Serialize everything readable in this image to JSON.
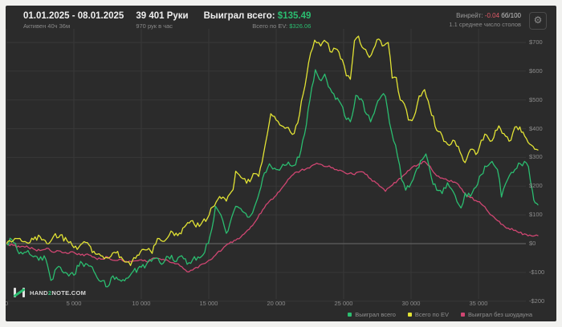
{
  "header": {
    "date_range": "01.01.2025 - 08.01.2025",
    "active_time": "Активен 40ч 36м",
    "hands": "39 401 Руки",
    "hands_per_hour": "970 рук в час",
    "won_label": "Выиграл всего:",
    "won_value": "$135.49",
    "ev_label": "Всего по EV:",
    "ev_value": "$326.06",
    "winrate_label": "Винрейт:",
    "winrate_value": "-0.04",
    "winrate_unit": "бб/100",
    "tables_avg": "1.1 среднее число столов",
    "gear_glyph": "⚙"
  },
  "footer": {
    "logo_part1": "HAND",
    "logo_part2": "2",
    "logo_part3": "NOTE.COM"
  },
  "legend": [
    {
      "label": "Выиграл всего",
      "color": "#2bbd70"
    },
    {
      "label": "Всего по EV",
      "color": "#e2e334"
    },
    {
      "label": "Выиграл без шоудауна",
      "color": "#d04672"
    }
  ],
  "colors": {
    "panel_bg": "#2b2b2b",
    "grid": "#383838",
    "zero_line": "#6b6b6b",
    "text_bright": "#efefef",
    "text_dim": "#8a8a8a",
    "green": "#2bbd70",
    "yellow": "#e2e334",
    "pink": "#d04672",
    "red": "#e05a68"
  },
  "chart_data": {
    "type": "line",
    "title": "",
    "xlabel": "",
    "ylabel": "",
    "x_range": [
      0,
      39401
    ],
    "y_range": [
      -200,
      730
    ],
    "grid": true,
    "legend_position": "bottom-right",
    "x_ticks": [
      {
        "value": 0,
        "label": "0"
      },
      {
        "value": 5000,
        "label": "5 000"
      },
      {
        "value": 10000,
        "label": "10 000"
      },
      {
        "value": 15000,
        "label": "15 000"
      },
      {
        "value": 20000,
        "label": "20 000"
      },
      {
        "value": 25000,
        "label": "25 000"
      },
      {
        "value": 30000,
        "label": "30 000"
      },
      {
        "value": 35000,
        "label": "35 000"
      }
    ],
    "y_ticks": [
      {
        "value": 700,
        "label": "$700"
      },
      {
        "value": 600,
        "label": "$600"
      },
      {
        "value": 500,
        "label": "$500"
      },
      {
        "value": 400,
        "label": "$400"
      },
      {
        "value": 300,
        "label": "$300"
      },
      {
        "value": 200,
        "label": "$200"
      },
      {
        "value": 100,
        "label": "$100"
      },
      {
        "value": 0,
        "label": "$0"
      },
      {
        "value": -100,
        "label": "-$100"
      },
      {
        "value": -200,
        "label": "-$200"
      }
    ],
    "series": [
      {
        "name": "Выиграл без шоудауна",
        "color": "#d04672",
        "noise": 5,
        "points": [
          [
            0,
            0
          ],
          [
            500,
            -6
          ],
          [
            1000,
            -12
          ],
          [
            1500,
            -8
          ],
          [
            2000,
            -18
          ],
          [
            2500,
            -24
          ],
          [
            3000,
            -16
          ],
          [
            3500,
            -30
          ],
          [
            4000,
            -26
          ],
          [
            4500,
            -34
          ],
          [
            5000,
            -30
          ],
          [
            5500,
            -40
          ],
          [
            6000,
            -36
          ],
          [
            6600,
            -50
          ],
          [
            7000,
            -54
          ],
          [
            7500,
            -46
          ],
          [
            8000,
            -58
          ],
          [
            8500,
            -54
          ],
          [
            9000,
            -64
          ],
          [
            9500,
            -60
          ],
          [
            10000,
            -56
          ],
          [
            10500,
            -64
          ],
          [
            11000,
            -50
          ],
          [
            11500,
            -56
          ],
          [
            12000,
            -60
          ],
          [
            12500,
            -70
          ],
          [
            13000,
            -80
          ],
          [
            13400,
            -98
          ],
          [
            13800,
            -92
          ],
          [
            14200,
            -84
          ],
          [
            14600,
            -70
          ],
          [
            15000,
            -58
          ],
          [
            15500,
            -40
          ],
          [
            16000,
            -20
          ],
          [
            16500,
            0
          ],
          [
            17000,
            12
          ],
          [
            17500,
            30
          ],
          [
            18000,
            50
          ],
          [
            18500,
            80
          ],
          [
            19000,
            118
          ],
          [
            19500,
            148
          ],
          [
            20000,
            168
          ],
          [
            20500,
            198
          ],
          [
            21000,
            228
          ],
          [
            21400,
            248
          ],
          [
            21800,
            254
          ],
          [
            22200,
            260
          ],
          [
            22600,
            270
          ],
          [
            23000,
            280
          ],
          [
            23400,
            274
          ],
          [
            23800,
            268
          ],
          [
            24200,
            264
          ],
          [
            24600,
            254
          ],
          [
            25000,
            250
          ],
          [
            25400,
            244
          ],
          [
            25800,
            240
          ],
          [
            26200,
            250
          ],
          [
            26600,
            242
          ],
          [
            27000,
            226
          ],
          [
            27400,
            212
          ],
          [
            27800,
            196
          ],
          [
            28100,
            182
          ],
          [
            28500,
            200
          ],
          [
            29000,
            220
          ],
          [
            29500,
            240
          ],
          [
            30000,
            262
          ],
          [
            30500,
            274
          ],
          [
            31000,
            286
          ],
          [
            31400,
            270
          ],
          [
            31900,
            236
          ],
          [
            32300,
            228
          ],
          [
            32700,
            220
          ],
          [
            33100,
            214
          ],
          [
            33500,
            206
          ],
          [
            34000,
            174
          ],
          [
            34400,
            160
          ],
          [
            34800,
            150
          ],
          [
            35200,
            138
          ],
          [
            35600,
            118
          ],
          [
            36000,
            98
          ],
          [
            36400,
            80
          ],
          [
            36800,
            66
          ],
          [
            37200,
            54
          ],
          [
            37600,
            46
          ],
          [
            38000,
            38
          ],
          [
            38400,
            34
          ],
          [
            38800,
            30
          ],
          [
            39401,
            28
          ]
        ]
      },
      {
        "name": "Выиграл всего",
        "color": "#2bbd70",
        "noise": 13,
        "points": [
          [
            0,
            0
          ],
          [
            400,
            14
          ],
          [
            800,
            -22
          ],
          [
            1200,
            -36
          ],
          [
            1600,
            -24
          ],
          [
            2000,
            -46
          ],
          [
            2400,
            -58
          ],
          [
            2800,
            -42
          ],
          [
            3300,
            -128
          ],
          [
            3600,
            -92
          ],
          [
            4000,
            -82
          ],
          [
            4500,
            -104
          ],
          [
            5000,
            -110
          ],
          [
            5500,
            -62
          ],
          [
            6000,
            -72
          ],
          [
            6600,
            -106
          ],
          [
            7000,
            -132
          ],
          [
            7500,
            -150
          ],
          [
            7900,
            -112
          ],
          [
            8400,
            -126
          ],
          [
            9000,
            -120
          ],
          [
            9400,
            -96
          ],
          [
            10000,
            -82
          ],
          [
            10500,
            -62
          ],
          [
            11000,
            -52
          ],
          [
            11500,
            -72
          ],
          [
            12000,
            -46
          ],
          [
            12600,
            -62
          ],
          [
            13000,
            -42
          ],
          [
            13400,
            -72
          ],
          [
            13800,
            -56
          ],
          [
            14200,
            -46
          ],
          [
            14700,
            -30
          ],
          [
            15100,
            28
          ],
          [
            15500,
            130
          ],
          [
            15900,
            100
          ],
          [
            16300,
            36
          ],
          [
            16700,
            92
          ],
          [
            17000,
            130
          ],
          [
            17500,
            112
          ],
          [
            18000,
            92
          ],
          [
            18500,
            142
          ],
          [
            19000,
            228
          ],
          [
            19500,
            278
          ],
          [
            20000,
            258
          ],
          [
            20500,
            276
          ],
          [
            20900,
            284
          ],
          [
            21300,
            272
          ],
          [
            21700,
            300
          ],
          [
            22100,
            380
          ],
          [
            22500,
            500
          ],
          [
            22900,
            605
          ],
          [
            23200,
            572
          ],
          [
            23600,
            590
          ],
          [
            24000,
            540
          ],
          [
            24400,
            502
          ],
          [
            24800,
            486
          ],
          [
            25200,
            432
          ],
          [
            25500,
            424
          ],
          [
            25900,
            516
          ],
          [
            26300,
            504
          ],
          [
            26700,
            450
          ],
          [
            27000,
            424
          ],
          [
            27400,
            478
          ],
          [
            27800,
            514
          ],
          [
            28100,
            512
          ],
          [
            28400,
            420
          ],
          [
            28700,
            358
          ],
          [
            29000,
            304
          ],
          [
            29300,
            222
          ],
          [
            29600,
            186
          ],
          [
            30000,
            210
          ],
          [
            30300,
            246
          ],
          [
            30700,
            288
          ],
          [
            31100,
            312
          ],
          [
            31500,
            230
          ],
          [
            31900,
            186
          ],
          [
            32300,
            174
          ],
          [
            32700,
            212
          ],
          [
            33000,
            190
          ],
          [
            33400,
            146
          ],
          [
            33700,
            124
          ],
          [
            34000,
            176
          ],
          [
            34400,
            164
          ],
          [
            34800,
            196
          ],
          [
            35200,
            240
          ],
          [
            35600,
            268
          ],
          [
            36000,
            286
          ],
          [
            36400,
            258
          ],
          [
            36700,
            162
          ],
          [
            37000,
            208
          ],
          [
            37300,
            238
          ],
          [
            37700,
            258
          ],
          [
            38100,
            278
          ],
          [
            38400,
            286
          ],
          [
            38700,
            268
          ],
          [
            39000,
            182
          ],
          [
            39200,
            142
          ],
          [
            39401,
            135
          ]
        ]
      },
      {
        "name": "Всего по EV",
        "color": "#e2e334",
        "noise": 12,
        "points": [
          [
            0,
            0
          ],
          [
            500,
            10
          ],
          [
            1000,
            18
          ],
          [
            1500,
            4
          ],
          [
            2000,
            14
          ],
          [
            2500,
            24
          ],
          [
            3000,
            0
          ],
          [
            3500,
            26
          ],
          [
            4000,
            30
          ],
          [
            4500,
            10
          ],
          [
            5000,
            -14
          ],
          [
            5500,
            -4
          ],
          [
            6000,
            4
          ],
          [
            6600,
            -36
          ],
          [
            7000,
            -42
          ],
          [
            7500,
            -50
          ],
          [
            8000,
            -30
          ],
          [
            8500,
            -46
          ],
          [
            9200,
            -76
          ],
          [
            9700,
            -40
          ],
          [
            10300,
            -22
          ],
          [
            10800,
            -34
          ],
          [
            11200,
            18
          ],
          [
            11700,
            8
          ],
          [
            12200,
            44
          ],
          [
            12700,
            28
          ],
          [
            13200,
            58
          ],
          [
            13800,
            80
          ],
          [
            14300,
            60
          ],
          [
            14900,
            88
          ],
          [
            15300,
            128
          ],
          [
            15800,
            164
          ],
          [
            16300,
            148
          ],
          [
            16800,
            188
          ],
          [
            17000,
            252
          ],
          [
            17400,
            230
          ],
          [
            17800,
            210
          ],
          [
            18300,
            244
          ],
          [
            18700,
            234
          ],
          [
            19200,
            348
          ],
          [
            19600,
            452
          ],
          [
            20000,
            430
          ],
          [
            20400,
            410
          ],
          [
            20900,
            404
          ],
          [
            21200,
            380
          ],
          [
            21600,
            420
          ],
          [
            22000,
            520
          ],
          [
            22400,
            630
          ],
          [
            22850,
            708
          ],
          [
            23300,
            688
          ],
          [
            23700,
            702
          ],
          [
            24000,
            668
          ],
          [
            24400,
            678
          ],
          [
            24900,
            640
          ],
          [
            25200,
            584
          ],
          [
            25500,
            572
          ],
          [
            25800,
            706
          ],
          [
            26100,
            722
          ],
          [
            26500,
            678
          ],
          [
            26900,
            648
          ],
          [
            27200,
            676
          ],
          [
            27600,
            712
          ],
          [
            28000,
            690
          ],
          [
            28300,
            700
          ],
          [
            28600,
            576
          ],
          [
            28900,
            578
          ],
          [
            29200,
            500
          ],
          [
            29500,
            486
          ],
          [
            29800,
            430
          ],
          [
            30200,
            440
          ],
          [
            30600,
            514
          ],
          [
            31000,
            536
          ],
          [
            31400,
            470
          ],
          [
            31900,
            394
          ],
          [
            32300,
            376
          ],
          [
            32700,
            346
          ],
          [
            33100,
            360
          ],
          [
            33500,
            338
          ],
          [
            34000,
            282
          ],
          [
            34400,
            328
          ],
          [
            34800,
            310
          ],
          [
            35200,
            360
          ],
          [
            35600,
            378
          ],
          [
            36000,
            358
          ],
          [
            36500,
            410
          ],
          [
            37000,
            374
          ],
          [
            37400,
            360
          ],
          [
            37700,
            406
          ],
          [
            38300,
            388
          ],
          [
            38800,
            346
          ],
          [
            39401,
            326
          ]
        ]
      }
    ]
  }
}
